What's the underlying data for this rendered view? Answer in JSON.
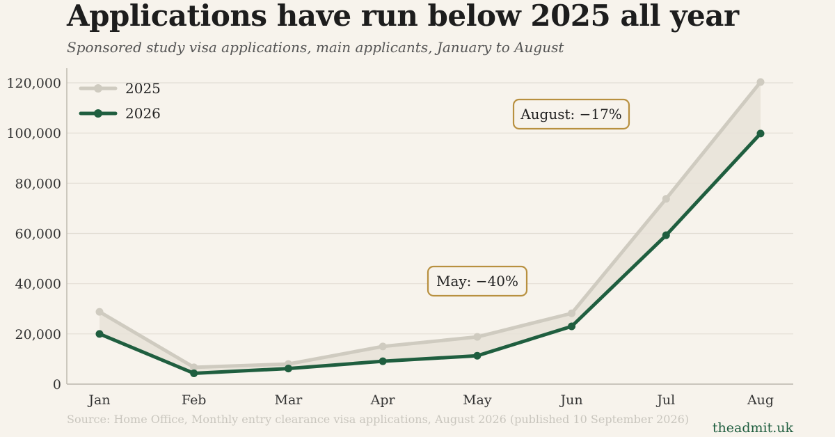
{
  "header": {
    "title": "Applications have run below 2025 all year",
    "subtitle": "Sponsored study visa applications, main applicants, January to August"
  },
  "footer": {
    "source": "Source: Home Office, Monthly entry clearance visa applications, August 2026 (published 10 September 2026)",
    "brand": "theadmit.uk"
  },
  "colors": {
    "series_2025": "#cfcbc0",
    "series_2026": "#1f5e3f",
    "gap_fill": "#e7e2d8",
    "annotation_border": "#b8903f",
    "grid": "#e3ded5",
    "axis": "#bbb6ab"
  },
  "chart_data": {
    "type": "line",
    "title": "Applications have run below 2025 all year",
    "subtitle": "Sponsored study visa applications, main applicants, January to August",
    "categories": [
      "Jan",
      "Feb",
      "Mar",
      "Apr",
      "May",
      "Jun",
      "Jul",
      "Aug"
    ],
    "series": [
      {
        "name": "2025",
        "values": [
          28800,
          6700,
          8000,
          15000,
          18800,
          28200,
          73800,
          120300
        ]
      },
      {
        "name": "2026",
        "values": [
          20000,
          4300,
          6200,
          9100,
          11300,
          23000,
          59300,
          99800
        ]
      }
    ],
    "yticks": [
      0,
      20000,
      40000,
      60000,
      80000,
      100000,
      120000
    ],
    "ytick_labels": [
      "0",
      "20,000",
      "40,000",
      "60,000",
      "80,000",
      "100,000",
      "120,000"
    ],
    "ylim": [
      0,
      120000
    ],
    "grid": true,
    "legend_position": "top-left",
    "annotations": [
      {
        "text": "May: −40%",
        "category": "May"
      },
      {
        "text": "August: −17%",
        "category": "Aug"
      }
    ]
  }
}
